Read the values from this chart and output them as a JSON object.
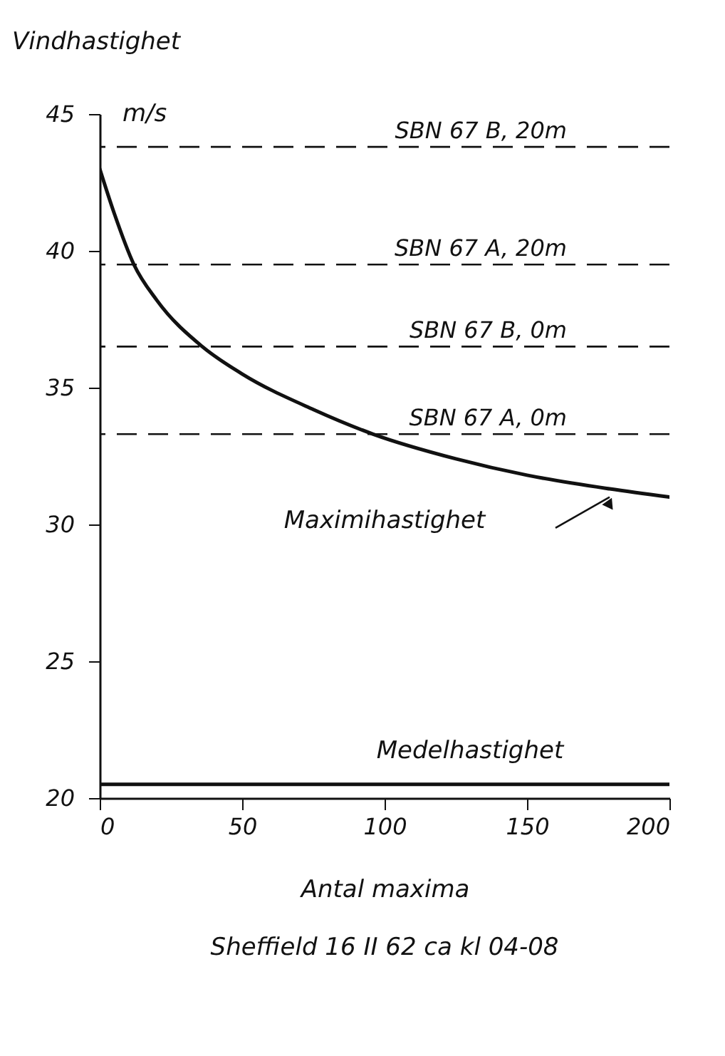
{
  "chart_data": {
    "type": "line",
    "xlabel": "Antal maxima",
    "ylabel": "Vindhastighet",
    "annotations": [
      "m/s",
      "Sheffield 16 II 62 ca kl 04-08"
    ],
    "xlim": [
      0,
      200
    ],
    "xticks": [
      0,
      50,
      100,
      150,
      200
    ],
    "ylim": [
      20,
      45
    ],
    "yticks": [
      20,
      25,
      30,
      35,
      40,
      45
    ],
    "grid": false,
    "legend": false,
    "marker": "none",
    "line_style": "solid",
    "series": [
      {
        "name": "Maximihastighet",
        "color": "#111111",
        "x": [
          0,
          5,
          12,
          20,
          36,
          50,
          75,
          96,
          125,
          150,
          179,
          200
        ],
        "values": [
          43.0,
          41.4,
          39.5,
          38.2,
          36.5,
          35.5,
          34.2,
          33.3,
          32.4,
          31.8,
          31.3,
          31.0
        ]
      },
      {
        "name": "Medelhastighet",
        "color": "#111111",
        "x": [
          0,
          200
        ],
        "values": [
          20.5,
          20.5
        ]
      }
    ],
    "ref_lines": [
      {
        "axis": "y",
        "value": 43.8,
        "label": "SBN 67 B, 20m",
        "color": "#111111",
        "line_style": "dashed"
      },
      {
        "axis": "y",
        "value": 39.5,
        "label": "SBN 67 A, 20m",
        "color": "#111111",
        "line_style": "dashed"
      },
      {
        "axis": "y",
        "value": 36.5,
        "label": "SBN 67 B, 0m",
        "color": "#111111",
        "line_style": "dashed"
      },
      {
        "axis": "y",
        "value": 33.3,
        "label": "SBN 67 A, 0m",
        "color": "#111111",
        "line_style": "dashed"
      }
    ]
  }
}
